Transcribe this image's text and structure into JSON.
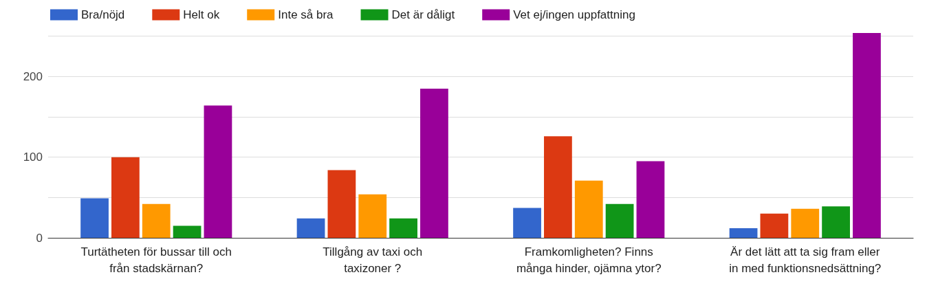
{
  "chart_data": {
    "type": "bar",
    "categories": [
      "Turtätheten för bussar till och\nfrån stadskärnan?",
      "Tillgång av taxi och\ntaxizoner ?",
      "Framkomligheten? Finns\nmånga hinder, ojämna ytor?",
      "Är det lätt att ta sig fram eller\nin med funktionsnedsättning?"
    ],
    "series": [
      {
        "name": "Bra/nöjd",
        "color": "#3366cc",
        "values": [
          49,
          24,
          37,
          12
        ]
      },
      {
        "name": "Helt ok",
        "color": "#dc3912",
        "values": [
          100,
          84,
          126,
          30
        ]
      },
      {
        "name": "Inte så bra",
        "color": "#ff9900",
        "values": [
          42,
          54,
          71,
          36
        ]
      },
      {
        "name": "Det är dåligt",
        "color": "#109618",
        "values": [
          15,
          24,
          42,
          39
        ]
      },
      {
        "name": "Vet ej/ingen uppfattning",
        "color": "#990099",
        "values": [
          164,
          185,
          95,
          254
        ]
      }
    ],
    "ylim": [
      0,
      254
    ],
    "yticks": [
      0,
      {
        "value": 50,
        "label": null
      },
      100,
      {
        "value": 150,
        "label": null
      },
      200,
      {
        "value": 250,
        "label": null
      }
    ],
    "grid": true,
    "legend": "top left"
  }
}
